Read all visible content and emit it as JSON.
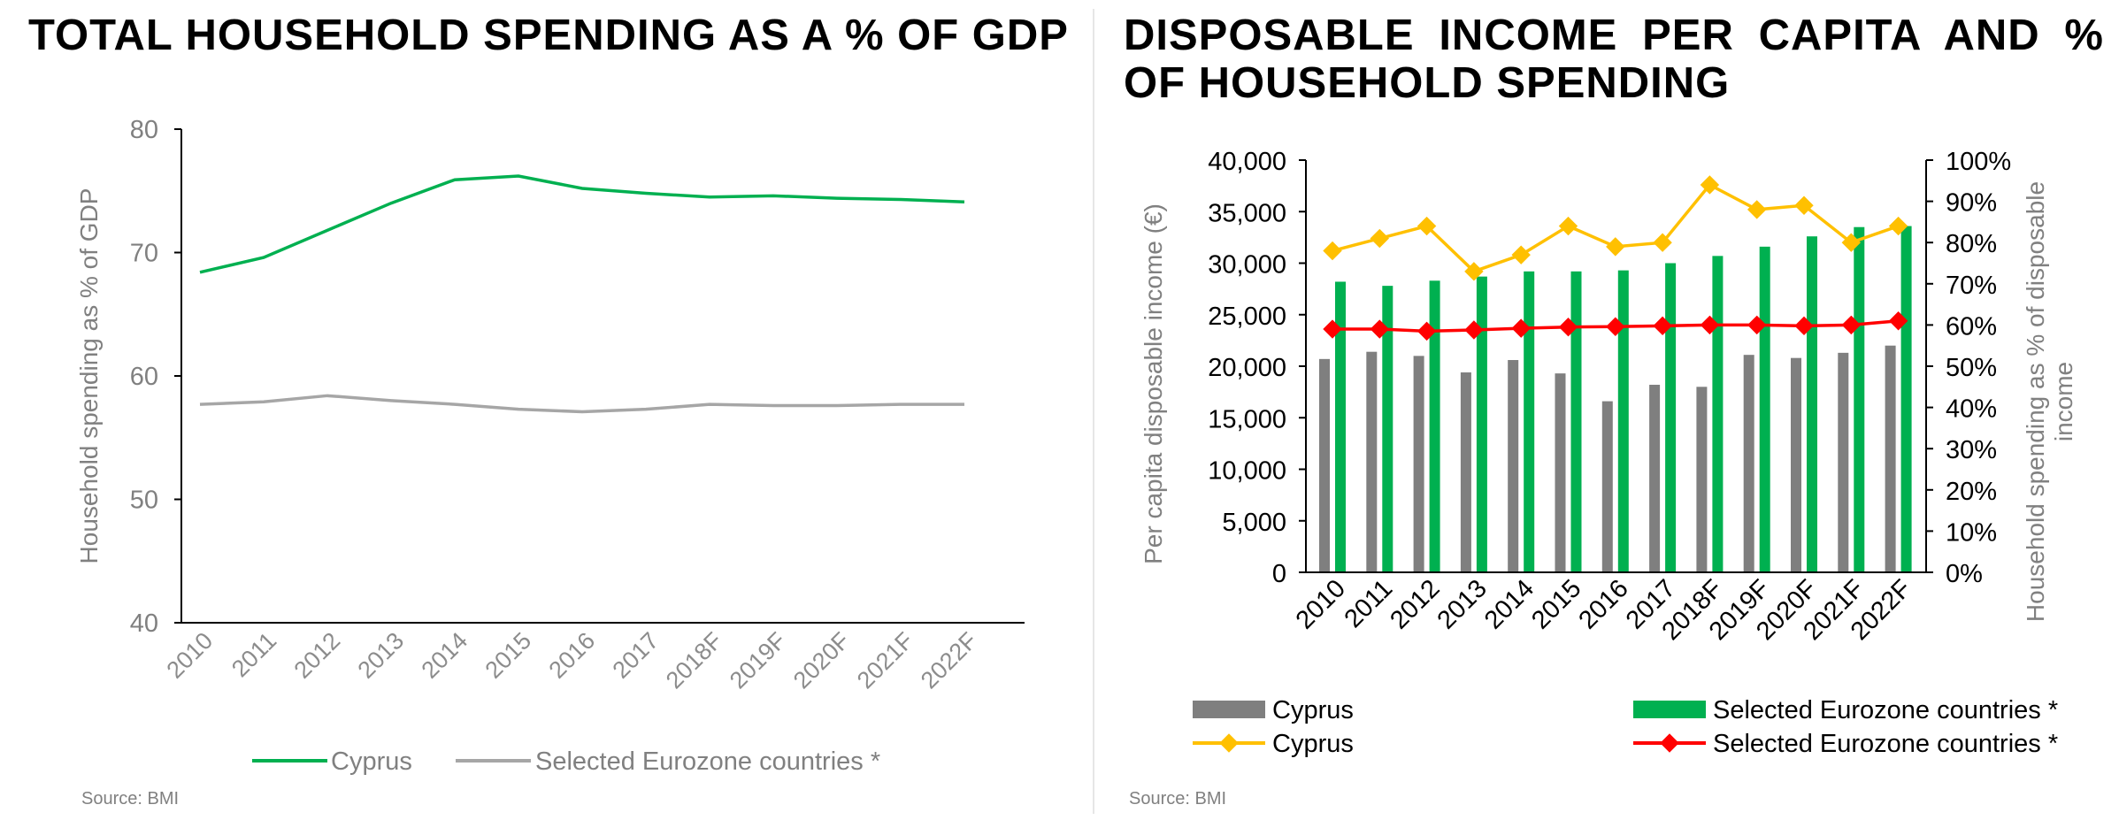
{
  "left": {
    "title": "TOTAL HOUSEHOLD SPENDING AS A % OF GDP",
    "source": "Source: BMI"
  },
  "right": {
    "title_line1": "DISPOSABLE INCOME PER CAPITA AND %",
    "title_line2": "OF HOUSEHOLD SPENDING",
    "source": "Source: BMI"
  },
  "colors": {
    "green": "#00b050",
    "grey": "#7f7f7f",
    "light_grey": "#a6a6a6",
    "yellow": "#ffc000",
    "red": "#ff0000"
  },
  "chart_data": [
    {
      "type": "line",
      "title": "TOTAL HOUSEHOLD SPENDING AS A % OF GDP",
      "xlabel": "",
      "ylabel": "Household spending as % of GDP",
      "ylim": [
        40,
        80
      ],
      "yticks": [
        40,
        50,
        60,
        70,
        80
      ],
      "categories": [
        "2010",
        "2011",
        "2012",
        "2013",
        "2014",
        "2015",
        "2016",
        "2017",
        "2018F",
        "2019F",
        "2020F",
        "2021F",
        "2022F"
      ],
      "series": [
        {
          "name": "Cyprus",
          "color": "#00b050",
          "values": [
            68.4,
            69.6,
            71.8,
            74.0,
            75.9,
            76.2,
            75.2,
            74.8,
            74.5,
            74.6,
            74.4,
            74.3,
            74.1
          ]
        },
        {
          "name": "Selected Eurozone countries *",
          "color": "#a6a6a6",
          "values": [
            57.7,
            57.9,
            58.4,
            58.0,
            57.7,
            57.3,
            57.1,
            57.3,
            57.7,
            57.6,
            57.6,
            57.7,
            57.7
          ]
        }
      ],
      "legend_position": "bottom",
      "grid": false
    },
    {
      "type": "bar",
      "title": "DISPOSABLE INCOME PER CAPITA AND % OF HOUSEHOLD SPENDING",
      "ylabel": "Per capita disposable income (€)",
      "y2label": "Household spending as % of disposable income",
      "ylim": [
        0,
        40000
      ],
      "yticks": [
        "0",
        "5,000",
        "10,000",
        "15,000",
        "20,000",
        "25,000",
        "30,000",
        "35,000",
        "40,000"
      ],
      "y2lim": [
        0,
        100
      ],
      "y2ticks": [
        "0%",
        "10%",
        "20%",
        "30%",
        "40%",
        "50%",
        "60%",
        "70%",
        "80%",
        "90%",
        "100%"
      ],
      "categories": [
        "2010",
        "2011",
        "2012",
        "2013",
        "2014",
        "2015",
        "2016",
        "2017",
        "2018F",
        "2019F",
        "2020F",
        "2021F",
        "2022F"
      ],
      "bar_series": [
        {
          "name": "Cyprus",
          "color": "#7f7f7f",
          "values": [
            20700,
            21400,
            21000,
            19400,
            20600,
            19300,
            16600,
            18200,
            18000,
            21100,
            20800,
            21300,
            22000
          ]
        },
        {
          "name": "Selected Eurozone countries *",
          "color": "#00b050",
          "values": [
            28200,
            27800,
            28300,
            28700,
            29200,
            29200,
            29300,
            30000,
            30700,
            31600,
            32600,
            33500,
            33600
          ]
        }
      ],
      "line_series": [
        {
          "name": "Cyprus",
          "color": "#ffc000",
          "axis": "secondary",
          "values": [
            78,
            81,
            84,
            73,
            77,
            84,
            79,
            80,
            94,
            88,
            89,
            80,
            84
          ]
        },
        {
          "name": "Selected Eurozone countries *",
          "color": "#ff0000",
          "axis": "secondary",
          "values": [
            59,
            59,
            58.5,
            58.8,
            59.2,
            59.5,
            59.6,
            59.8,
            60,
            60,
            59.8,
            60,
            61
          ]
        }
      ],
      "legend_position": "bottom",
      "grid": false
    }
  ]
}
